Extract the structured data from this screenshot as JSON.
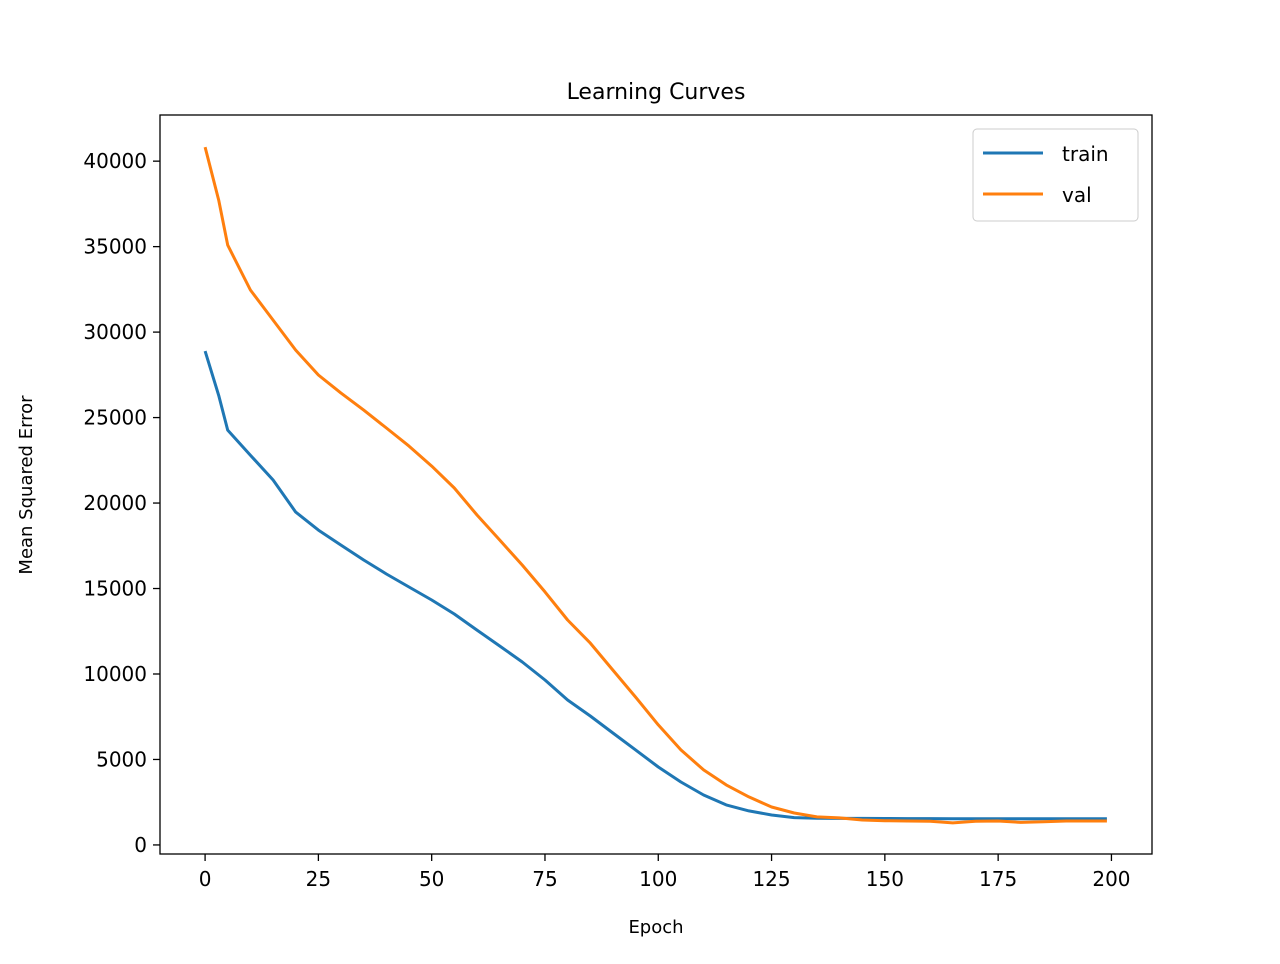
{
  "chart_data": {
    "type": "line",
    "title": "Learning Curves",
    "xlabel": "Epoch",
    "ylabel": "Mean Squared Error",
    "xlim": [
      -9.95,
      208.95
    ],
    "ylim": [
      -530,
      42700
    ],
    "xticks": [
      0,
      25,
      50,
      75,
      100,
      125,
      150,
      175,
      200
    ],
    "yticks": [
      0,
      5000,
      10000,
      15000,
      20000,
      25000,
      30000,
      35000,
      40000
    ],
    "grid": false,
    "legend_position": "top-right",
    "x": [
      0,
      3,
      5,
      10,
      15,
      20,
      25,
      30,
      35,
      40,
      45,
      50,
      55,
      60,
      65,
      70,
      75,
      80,
      85,
      90,
      95,
      100,
      105,
      110,
      115,
      120,
      125,
      130,
      135,
      140,
      145,
      150,
      155,
      160,
      165,
      170,
      175,
      180,
      185,
      190,
      195,
      199
    ],
    "series": [
      {
        "name": "train",
        "color": "#1f77b4",
        "values": [
          28890,
          26300,
          24270,
          22800,
          21350,
          19470,
          18420,
          17540,
          16670,
          15850,
          15090,
          14330,
          13510,
          12570,
          11640,
          10700,
          9650,
          8480,
          7540,
          6550,
          5560,
          4560,
          3680,
          2920,
          2340,
          1990,
          1750,
          1600,
          1560,
          1550,
          1550,
          1545,
          1540,
          1540,
          1535,
          1535,
          1535,
          1535,
          1535,
          1535,
          1535,
          1535
        ]
      },
      {
        "name": "val",
        "color": "#ff7f0e",
        "values": [
          40820,
          37720,
          35090,
          32460,
          30700,
          28950,
          27490,
          26430,
          25440,
          24390,
          23330,
          22160,
          20880,
          19300,
          17840,
          16370,
          14800,
          13160,
          11810,
          10230,
          8650,
          7020,
          5560,
          4390,
          3510,
          2810,
          2220,
          1870,
          1640,
          1580,
          1460,
          1420,
          1400,
          1390,
          1290,
          1380,
          1400,
          1320,
          1360,
          1400,
          1400,
          1400
        ]
      }
    ]
  }
}
